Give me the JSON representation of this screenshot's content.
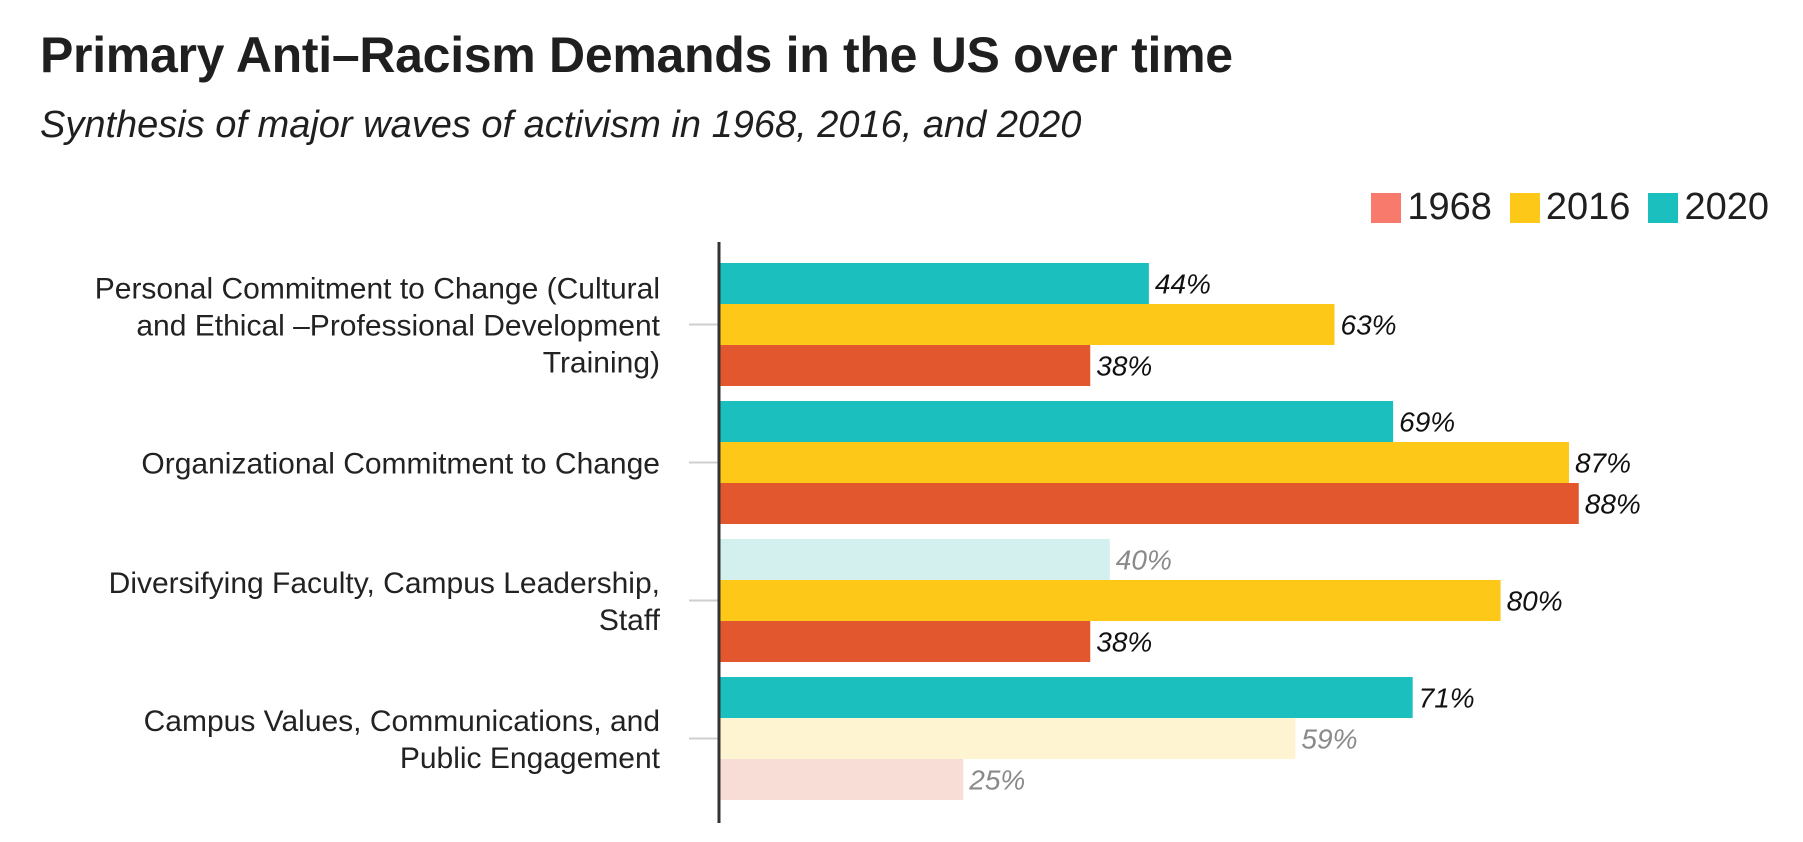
{
  "chart_data": {
    "type": "bar",
    "orientation": "horizontal",
    "title": "Primary Anti–Racism Demands in the US over time",
    "subtitle": "Synthesis of major waves of activism in 1968, 2016, and 2020",
    "legend_position": "top-right",
    "categories": [
      [
        "Personal Commitment to Change (Cultural",
        "and Ethical –Professional Development",
        "Training)"
      ],
      [
        "Organizational Commitment to Change"
      ],
      [
        "Diversifying Faculty, Campus Leadership,",
        "Staff"
      ],
      [
        "Campus Values, Communications, and",
        "Public Engagement"
      ]
    ],
    "series": [
      {
        "name": "2020",
        "color": "#1bbfbd",
        "faded_color": "#d3f0ef",
        "values": [
          44,
          69,
          40,
          71
        ],
        "faded": [
          false,
          false,
          true,
          false
        ]
      },
      {
        "name": "2016",
        "color": "#fec818",
        "faded_color": "#fff4d2",
        "values": [
          63,
          87,
          80,
          59
        ],
        "faded": [
          false,
          false,
          false,
          true
        ]
      },
      {
        "name": "1968",
        "color": "#e3572e",
        "faded_color": "#f8ddd6",
        "values": [
          38,
          88,
          38,
          25
        ],
        "faded": [
          false,
          false,
          false,
          true
        ]
      }
    ],
    "legend": [
      {
        "name": "1968",
        "color": "#f87a6c"
      },
      {
        "name": "2016",
        "color": "#fec818"
      },
      {
        "name": "2020",
        "color": "#1bbfbd"
      }
    ],
    "value_suffix": "%",
    "xlim": [
      0,
      100
    ],
    "grid": false
  }
}
